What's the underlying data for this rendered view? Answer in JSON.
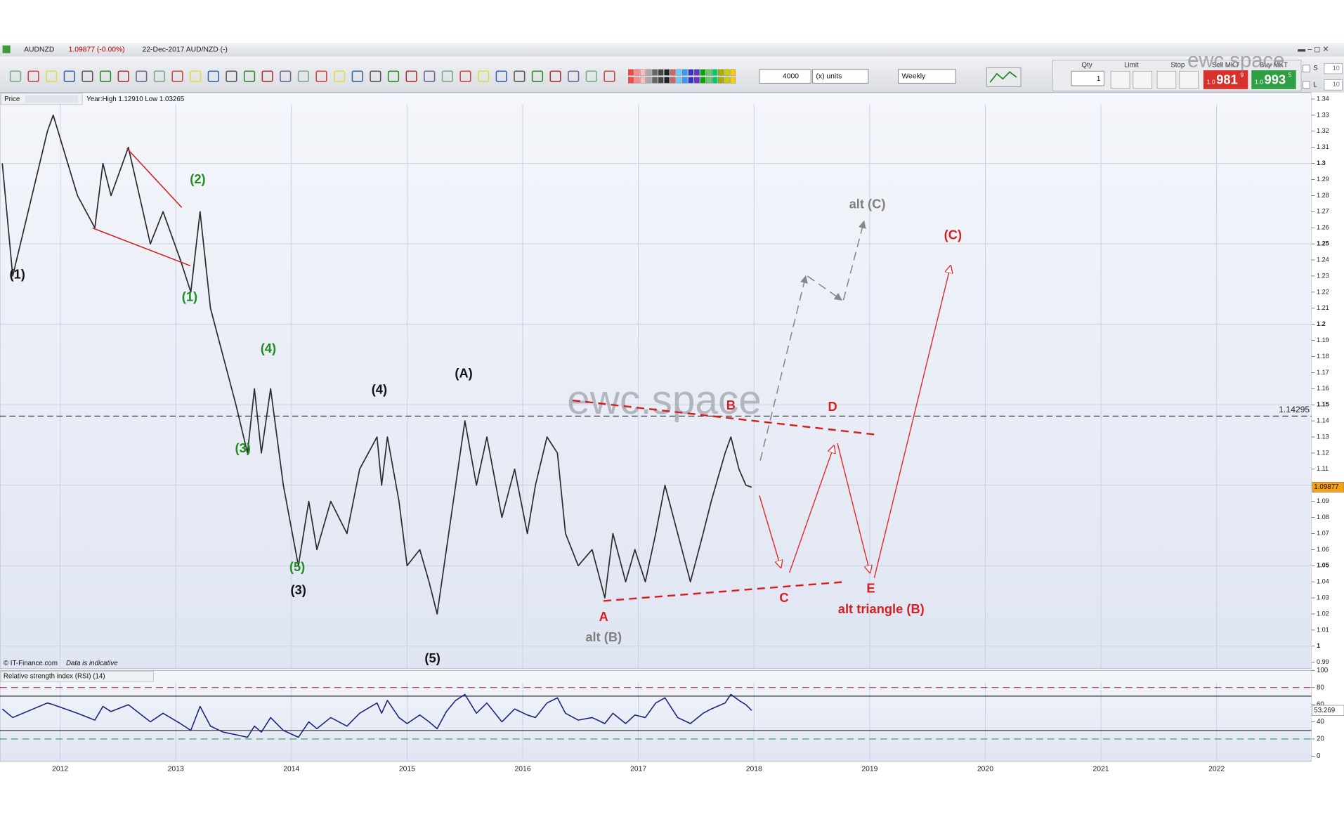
{
  "header": {
    "symbol": "AUDNZD",
    "change": "1.09877 (-0.00%)",
    "date": "22-Dec-2017 AUD/NZD (-)",
    "watermark": "ewc.space"
  },
  "toolbar": {
    "quantity": "4000",
    "units": "(x) units",
    "timeframe": "Weekly",
    "qty_label": "Qty",
    "qty": "1",
    "limit_label": "Limit",
    "stop_label": "Stop",
    "sell_label": "Sell MKT",
    "buy_label": "Buy MKT",
    "sell_prefix": "1.0",
    "sell_main": "981",
    "sell_sup": "9",
    "buy_prefix": "1.0",
    "buy_main": "993",
    "buy_sup": "5",
    "s_label": "S",
    "s_value": "10",
    "l_label": "L",
    "l_value": "10"
  },
  "chart_data": [
    {
      "type": "line",
      "title": "Price",
      "subtitle": "Year:High 1.12910 Low 1.03265",
      "watermark": "ewc.space",
      "footer": "© IT-Finance.com",
      "footnote": "Data is indicative",
      "x": [
        2011.5,
        2011.59,
        2011.89,
        2011.94,
        2012.15,
        2012.3,
        2012.37,
        2012.44,
        2012.59,
        2012.78,
        2012.89,
        2013.04,
        2013.13,
        2013.21,
        2013.3,
        2013.41,
        2013.52,
        2013.62,
        2013.68,
        2013.74,
        2013.82,
        2013.93,
        2014.06,
        2014.15,
        2014.22,
        2014.34,
        2014.48,
        2014.59,
        2014.74,
        2014.78,
        2014.83,
        2014.93,
        2015.0,
        2015.11,
        2015.19,
        2015.26,
        2015.34,
        2015.42,
        2015.5,
        2015.6,
        2015.69,
        2015.82,
        2015.93,
        2016.04,
        2016.11,
        2016.21,
        2016.3,
        2016.37,
        2016.48,
        2016.6,
        2016.71,
        2016.78,
        2016.89,
        2016.97,
        2017.06,
        2017.15,
        2017.23,
        2017.34,
        2017.45,
        2017.56,
        2017.63,
        2017.75,
        2017.8,
        2017.87,
        2017.93,
        2017.98
      ],
      "values": [
        1.3,
        1.23,
        1.32,
        1.33,
        1.28,
        1.26,
        1.3,
        1.28,
        1.31,
        1.25,
        1.27,
        1.24,
        1.22,
        1.27,
        1.21,
        1.18,
        1.15,
        1.12,
        1.16,
        1.12,
        1.16,
        1.1,
        1.05,
        1.09,
        1.06,
        1.09,
        1.07,
        1.11,
        1.13,
        1.1,
        1.13,
        1.09,
        1.05,
        1.06,
        1.04,
        1.02,
        1.06,
        1.1,
        1.14,
        1.1,
        1.13,
        1.08,
        1.11,
        1.07,
        1.1,
        1.13,
        1.12,
        1.07,
        1.05,
        1.06,
        1.03,
        1.07,
        1.04,
        1.06,
        1.04,
        1.07,
        1.1,
        1.07,
        1.04,
        1.07,
        1.09,
        1.12,
        1.13,
        1.11,
        1.1,
        1.09877
      ],
      "color": "#2b2b2b",
      "xlim": [
        2011.48,
        2022.82
      ],
      "xticks": [
        2012,
        2013,
        2014,
        2015,
        2016,
        2017,
        2018,
        2019,
        2020,
        2021,
        2022
      ],
      "ylim": [
        0.986,
        1.344
      ],
      "yticks": [
        0.99,
        1,
        1.01,
        1.02,
        1.03,
        1.04,
        1.05,
        1.06,
        1.07,
        1.08,
        1.09,
        1.1,
        1.11,
        1.12,
        1.13,
        1.14,
        1.15,
        1.16,
        1.17,
        1.18,
        1.19,
        1.2,
        1.21,
        1.22,
        1.23,
        1.24,
        1.25,
        1.26,
        1.27,
        1.28,
        1.29,
        1.3,
        1.31,
        1.32,
        1.33,
        1.34
      ],
      "grid": true,
      "reference_line": 1.14295,
      "annotations": [
        {
          "text": "(1)",
          "x": 2011.63,
          "y": 1.2305,
          "color": "#111111"
        },
        {
          "text": "(3)",
          "x": 2014.06,
          "y": 1.0343,
          "color": "#111111"
        },
        {
          "text": "(4)",
          "x": 2014.76,
          "y": 1.159,
          "color": "#111111"
        },
        {
          "text": "(A)",
          "x": 2015.49,
          "y": 1.169,
          "color": "#111111"
        },
        {
          "text": "(5)",
          "x": 2015.22,
          "y": 0.992,
          "color": "#111111"
        },
        {
          "text": "(2)",
          "x": 2013.19,
          "y": 1.2898,
          "color": "#1e8c1e"
        },
        {
          "text": "(1)",
          "x": 2013.12,
          "y": 1.2166,
          "color": "#1e8c1e"
        },
        {
          "text": "(4)",
          "x": 2013.8,
          "y": 1.1845,
          "color": "#1e8c1e"
        },
        {
          "text": "(3)",
          "x": 2013.58,
          "y": 1.1225,
          "color": "#1e8c1e"
        },
        {
          "text": "(5)",
          "x": 2014.05,
          "y": 1.0488,
          "color": "#1e8c1e"
        },
        {
          "text": "A",
          "x": 2016.7,
          "y": 1.0178,
          "color": "#d42020"
        },
        {
          "text": "B",
          "x": 2017.8,
          "y": 1.1492,
          "color": "#d42020"
        },
        {
          "text": "C",
          "x": 2018.26,
          "y": 1.0295,
          "color": "#d42020"
        },
        {
          "text": "D",
          "x": 2018.68,
          "y": 1.1482,
          "color": "#d42020"
        },
        {
          "text": "E",
          "x": 2019.01,
          "y": 1.0354,
          "color": "#d42020"
        },
        {
          "text": "(C)",
          "x": 2019.72,
          "y": 1.255,
          "color": "#d42020"
        },
        {
          "text": "alt triangle (B)",
          "x": 2019.1,
          "y": 1.0226,
          "color": "#d42020"
        },
        {
          "text": "alt (B)",
          "x": 2016.7,
          "y": 1.005,
          "color": "#808080"
        },
        {
          "text": "alt (C)",
          "x": 2018.98,
          "y": 1.2743,
          "color": "#808080"
        }
      ]
    },
    {
      "type": "line",
      "title": "Relative strength index (RSI) (14)",
      "x": [
        2011.5,
        2011.59,
        2011.89,
        2011.94,
        2012.15,
        2012.3,
        2012.37,
        2012.44,
        2012.59,
        2012.78,
        2012.89,
        2013.04,
        2013.13,
        2013.21,
        2013.3,
        2013.41,
        2013.52,
        2013.62,
        2013.68,
        2013.74,
        2013.82,
        2013.93,
        2014.06,
        2014.15,
        2014.22,
        2014.34,
        2014.48,
        2014.59,
        2014.74,
        2014.78,
        2014.83,
        2014.93,
        2015.0,
        2015.11,
        2015.19,
        2015.26,
        2015.34,
        2015.42,
        2015.5,
        2015.6,
        2015.69,
        2015.82,
        2015.93,
        2016.04,
        2016.11,
        2016.21,
        2016.3,
        2016.37,
        2016.48,
        2016.6,
        2016.71,
        2016.78,
        2016.89,
        2016.97,
        2017.06,
        2017.15,
        2017.23,
        2017.34,
        2017.45,
        2017.56,
        2017.63,
        2017.75,
        2017.8,
        2017.87,
        2017.93,
        2017.98
      ],
      "values": [
        55,
        45,
        62,
        60,
        50,
        42,
        58,
        52,
        60,
        40,
        50,
        38,
        30,
        58,
        35,
        28,
        25,
        22,
        35,
        28,
        45,
        30,
        22,
        40,
        32,
        45,
        35,
        50,
        62,
        50,
        65,
        45,
        38,
        48,
        40,
        32,
        52,
        65,
        72,
        50,
        62,
        40,
        55,
        48,
        45,
        62,
        68,
        50,
        42,
        45,
        38,
        50,
        38,
        48,
        45,
        62,
        68,
        45,
        38,
        50,
        55,
        62,
        72,
        65,
        60,
        53.269
      ],
      "color": "#1a237e",
      "xlim": [
        2011.48,
        2022.82
      ],
      "xticks": [
        2012,
        2013,
        2014,
        2015,
        2016,
        2017,
        2018,
        2019,
        2020,
        2021,
        2022
      ],
      "ylim": [
        -6,
        104
      ],
      "yticks": [
        0,
        20,
        40,
        60,
        80,
        100
      ],
      "grid": true,
      "upper_level": 80,
      "lower_level": 20,
      "band": [
        30,
        70
      ]
    }
  ]
}
